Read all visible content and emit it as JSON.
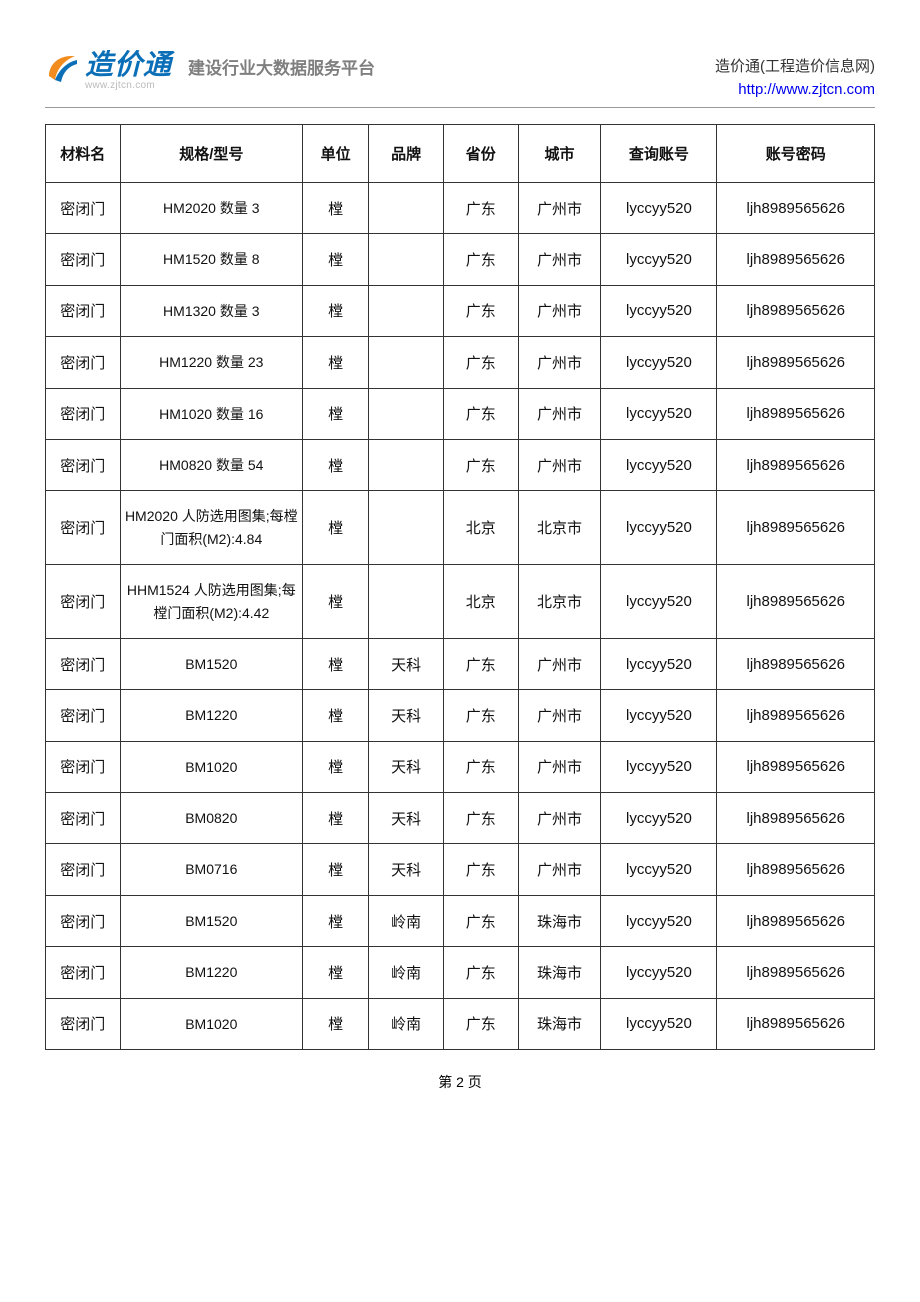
{
  "header": {
    "logo_text": "造价通",
    "logo_url_under": "www.zjtcn.com",
    "tagline": "建设行业大数据服务平台",
    "right_line1": "造价通(工程造价信息网)",
    "right_line2": "http://www.zjtcn.com",
    "logo_colors": {
      "orange": "#f28c1e",
      "blue": "#0b6fb8"
    }
  },
  "table": {
    "columns": [
      "材料名",
      "规格/型号",
      "单位",
      "品牌",
      "省份",
      "城市",
      "查询账号",
      "账号密码"
    ],
    "column_widths_pct": [
      9,
      22,
      8,
      9,
      9,
      10,
      14,
      19
    ],
    "border_color": "#333333",
    "header_fontsize": 15,
    "cell_fontsize": 15,
    "rows": [
      [
        "密闭门",
        "HM2020 数量 3",
        "樘",
        "",
        "广东",
        "广州市",
        "lyccyy520",
        "ljh8989565626"
      ],
      [
        "密闭门",
        "HM1520 数量 8",
        "樘",
        "",
        "广东",
        "广州市",
        "lyccyy520",
        "ljh8989565626"
      ],
      [
        "密闭门",
        "HM1320 数量 3",
        "樘",
        "",
        "广东",
        "广州市",
        "lyccyy520",
        "ljh8989565626"
      ],
      [
        "密闭门",
        "HM1220 数量 23",
        "樘",
        "",
        "广东",
        "广州市",
        "lyccyy520",
        "ljh8989565626"
      ],
      [
        "密闭门",
        "HM1020 数量 16",
        "樘",
        "",
        "广东",
        "广州市",
        "lyccyy520",
        "ljh8989565626"
      ],
      [
        "密闭门",
        "HM0820 数量 54",
        "樘",
        "",
        "广东",
        "广州市",
        "lyccyy520",
        "ljh8989565626"
      ],
      [
        "密闭门",
        "HM2020 人防选用图集;每樘门面积(M2):4.84",
        "樘",
        "",
        "北京",
        "北京市",
        "lyccyy520",
        "ljh8989565626"
      ],
      [
        "密闭门",
        "HHM1524 人防选用图集;每樘门面积(M2):4.42",
        "樘",
        "",
        "北京",
        "北京市",
        "lyccyy520",
        "ljh8989565626"
      ],
      [
        "密闭门",
        "BM1520",
        "樘",
        "天科",
        "广东",
        "广州市",
        "lyccyy520",
        "ljh8989565626"
      ],
      [
        "密闭门",
        "BM1220",
        "樘",
        "天科",
        "广东",
        "广州市",
        "lyccyy520",
        "ljh8989565626"
      ],
      [
        "密闭门",
        "BM1020",
        "樘",
        "天科",
        "广东",
        "广州市",
        "lyccyy520",
        "ljh8989565626"
      ],
      [
        "密闭门",
        "BM0820",
        "樘",
        "天科",
        "广东",
        "广州市",
        "lyccyy520",
        "ljh8989565626"
      ],
      [
        "密闭门",
        "BM0716",
        "樘",
        "天科",
        "广东",
        "广州市",
        "lyccyy520",
        "ljh8989565626"
      ],
      [
        "密闭门",
        "BM1520",
        "樘",
        "岭南",
        "广东",
        "珠海市",
        "lyccyy520",
        "ljh8989565626"
      ],
      [
        "密闭门",
        "BM1220",
        "樘",
        "岭南",
        "广东",
        "珠海市",
        "lyccyy520",
        "ljh8989565626"
      ],
      [
        "密闭门",
        "BM1020",
        "樘",
        "岭南",
        "广东",
        "珠海市",
        "lyccyy520",
        "ljh8989565626"
      ]
    ]
  },
  "footer": {
    "page_label": "第 2 页"
  }
}
